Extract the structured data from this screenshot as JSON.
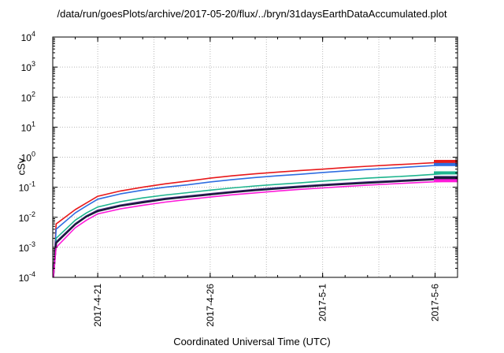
{
  "chart_data": {
    "type": "line",
    "title": "/data/run/goesPlots/archive/2017-05-20/flux/../bryn/31daysEarthDataAccumulated.plot",
    "xlabel": "Coordinated Universal Time (UTC)",
    "ylabel": "cSv",
    "y_scale": "log",
    "ylim": [
      0.0001,
      10000
    ],
    "xlim": [
      "2017-04-19",
      "2017-05-07"
    ],
    "x_ticks": [
      "2017-4-21",
      "2017-4-26",
      "2017-5-1",
      "2017-5-6"
    ],
    "x_tick_dates": [
      "2017-04-21",
      "2017-04-26",
      "2017-05-01",
      "2017-05-06"
    ],
    "y_ticks": [
      {
        "base": "10",
        "exp": "-4",
        "value": 0.0001
      },
      {
        "base": "10",
        "exp": "-3",
        "value": 0.001
      },
      {
        "base": "10",
        "exp": "-2",
        "value": 0.01
      },
      {
        "base": "10",
        "exp": "-1",
        "value": 0.1
      },
      {
        "base": "10",
        "exp": "0",
        "value": 1
      },
      {
        "base": "10",
        "exp": "1",
        "value": 10
      },
      {
        "base": "10",
        "exp": "2",
        "value": 100
      },
      {
        "base": "10",
        "exp": "3",
        "value": 1000
      },
      {
        "base": "10",
        "exp": "4",
        "value": 10000
      }
    ],
    "grid": true,
    "x": [
      "2017-04-19",
      "2017-04-19",
      "2017-04-20",
      "2017-04-20",
      "2017-04-21",
      "2017-04-22",
      "2017-04-23",
      "2017-04-24",
      "2017-04-25",
      "2017-04-26",
      "2017-04-27",
      "2017-04-28",
      "2017-04-29",
      "2017-04-30",
      "2017-05-01",
      "2017-05-02",
      "2017-05-03",
      "2017-05-04",
      "2017-05-05",
      "2017-05-06",
      "2017-05-07"
    ],
    "series": [
      {
        "color": "#e8191b",
        "values": [
          0.0001,
          0.006,
          0.018,
          0.03,
          0.05,
          0.075,
          0.1,
          0.13,
          0.16,
          0.2,
          0.24,
          0.28,
          0.32,
          0.36,
          0.4,
          0.45,
          0.5,
          0.55,
          0.6,
          0.66,
          0.72
        ]
      },
      {
        "color": "#2f6de1",
        "values": [
          0.0001,
          0.004,
          0.014,
          0.024,
          0.04,
          0.06,
          0.08,
          0.1,
          0.12,
          0.15,
          0.18,
          0.21,
          0.24,
          0.27,
          0.31,
          0.35,
          0.39,
          0.43,
          0.48,
          0.53,
          0.57
        ]
      },
      {
        "color": "#1fb58f",
        "values": [
          0.0001,
          0.002,
          0.008,
          0.014,
          0.022,
          0.033,
          0.044,
          0.055,
          0.066,
          0.08,
          0.095,
          0.11,
          0.125,
          0.14,
          0.16,
          0.18,
          0.2,
          0.22,
          0.24,
          0.27,
          0.3
        ]
      },
      {
        "color": "#4b2c84",
        "values": [
          0.0001,
          0.0015,
          0.006,
          0.011,
          0.017,
          0.025,
          0.033,
          0.042,
          0.05,
          0.06,
          0.071,
          0.083,
          0.095,
          0.107,
          0.12,
          0.133,
          0.147,
          0.16,
          0.175,
          0.19,
          0.21
        ]
      },
      {
        "color": "#1a1a3a",
        "values": [
          0.0001,
          0.0014,
          0.0058,
          0.0105,
          0.016,
          0.024,
          0.031,
          0.04,
          0.048,
          0.057,
          0.068,
          0.079,
          0.09,
          0.102,
          0.115,
          0.127,
          0.14,
          0.153,
          0.167,
          0.182,
          0.2
        ]
      },
      {
        "color": "#ff1ad9",
        "values": [
          0.0001,
          0.001,
          0.0045,
          0.008,
          0.013,
          0.019,
          0.025,
          0.032,
          0.039,
          0.047,
          0.056,
          0.065,
          0.075,
          0.085,
          0.095,
          0.106,
          0.117,
          0.128,
          0.14,
          0.152,
          0.165
        ]
      }
    ]
  }
}
